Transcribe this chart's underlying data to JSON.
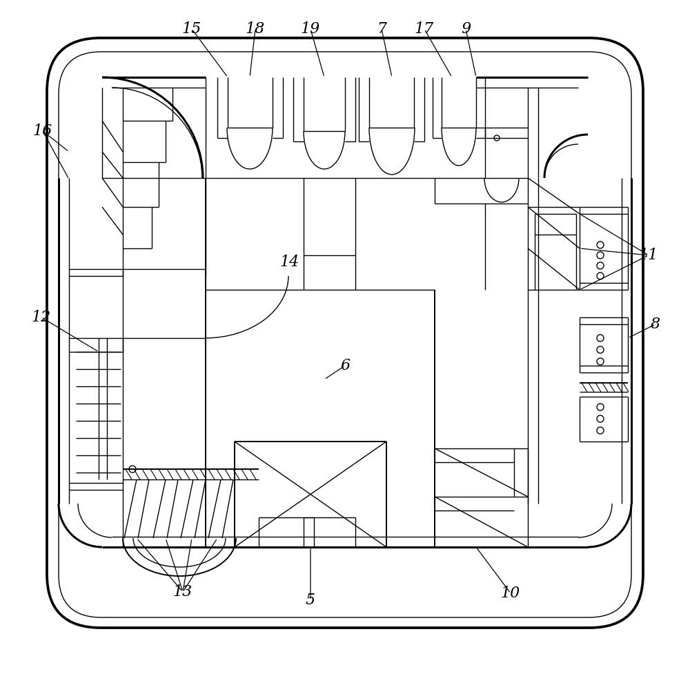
{
  "fig_width": 10.0,
  "fig_height": 9.77,
  "bg_color": "#ffffff",
  "line_color": "#000000",
  "lw_thick": 2.2,
  "lw_med": 1.4,
  "lw_thin": 1.0,
  "lw_anno": 0.9
}
